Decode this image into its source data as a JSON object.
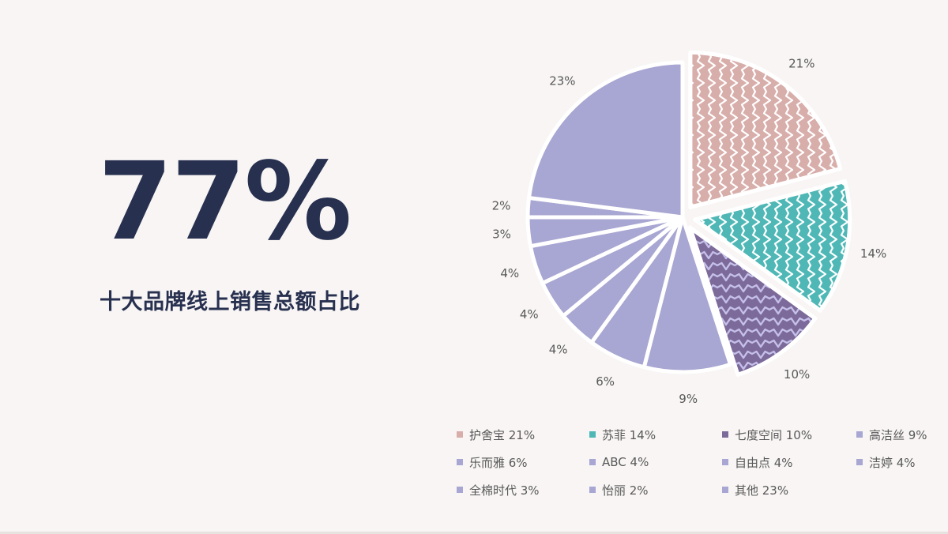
{
  "headline": {
    "percent": "77%",
    "subtitle": "十大品牌线上销售总额占比"
  },
  "colors": {
    "text_dark": "#27304f",
    "text_label": "#595959",
    "pink": "#d8aeab",
    "teal": "#4fb8b6",
    "purple_dark": "#7c6a9a",
    "lavender": "#a8a6d2"
  },
  "chart_data": {
    "type": "pie",
    "title": "",
    "slices": [
      {
        "name": "护舍宝",
        "value": 21,
        "label": "21%",
        "legend": "护舍宝 21%",
        "color": "#d8aeab",
        "pattern": "wave-white",
        "exploded": true
      },
      {
        "name": "苏菲",
        "value": 14,
        "label": "14%",
        "legend": "苏菲 14%",
        "color": "#4fb8b6",
        "pattern": "wave-white",
        "exploded": true
      },
      {
        "name": "七度空间",
        "value": 10,
        "label": "10%",
        "legend": "七度空间 10%",
        "color": "#7c6a9a",
        "pattern": "wave-lavender",
        "exploded": true
      },
      {
        "name": "高洁丝",
        "value": 9,
        "label": "9%",
        "legend": "高洁丝 9%",
        "color": "#a8a6d2"
      },
      {
        "name": "乐而雅",
        "value": 6,
        "label": "6%",
        "legend": "乐而雅 6%",
        "color": "#a8a6d2"
      },
      {
        "name": "ABC",
        "value": 4,
        "label": "4%",
        "legend": "ABC 4%",
        "color": "#a8a6d2"
      },
      {
        "name": "自由点",
        "value": 4,
        "label": "4%",
        "legend": "自由点 4%",
        "color": "#a8a6d2"
      },
      {
        "name": "洁婷",
        "value": 4,
        "label": "4%",
        "legend": "洁婷 4%",
        "color": "#a8a6d2"
      },
      {
        "name": "全棉时代",
        "value": 3,
        "label": "3%",
        "legend": "全棉时代 3%",
        "color": "#a8a6d2"
      },
      {
        "name": "怡丽",
        "value": 2,
        "label": "2%",
        "legend": "怡丽 2%",
        "color": "#a8a6d2"
      },
      {
        "name": "其他",
        "value": 23,
        "label": "23%",
        "legend": "其他 23%",
        "color": "#a8a6d2"
      }
    ],
    "start_angle_deg": 0,
    "direction": "clockwise",
    "legend_position": "bottom"
  }
}
